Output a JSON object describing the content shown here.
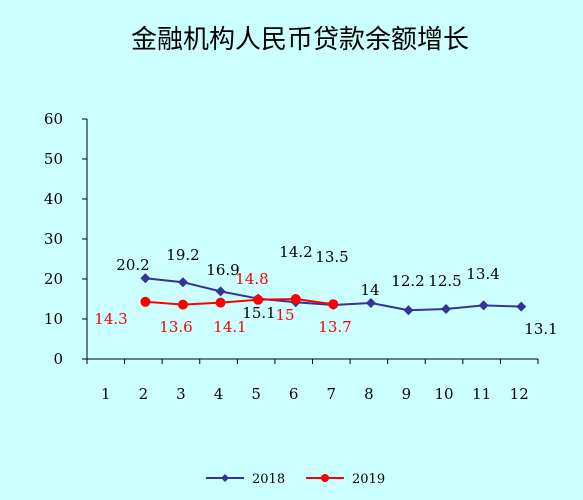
{
  "chart_data": {
    "type": "line",
    "title": "金融机构人民币贷款余额增长",
    "xlabel": "",
    "ylabel": "",
    "categories": [
      "1",
      "2",
      "3",
      "4",
      "5",
      "6",
      "7",
      "8",
      "9",
      "10",
      "11",
      "12"
    ],
    "ylim": [
      0,
      60
    ],
    "yticks": [
      "0",
      "10",
      "20",
      "30",
      "40",
      "50",
      "60"
    ],
    "grid": false,
    "legend": "bottom-center",
    "series": [
      {
        "name": "2018",
        "color": "#333399",
        "marker": "diamond",
        "values": [
          null,
          20.2,
          19.2,
          16.9,
          15.1,
          14.2,
          13.5,
          14,
          12.2,
          12.5,
          13.4,
          13.1
        ],
        "labels": [
          "",
          "20.2",
          "19.2",
          "16.9",
          "15.1",
          "14.2",
          "13.5",
          "14",
          "12.2",
          "12.5",
          "13.4",
          "13.1"
        ],
        "label_color": "#000000"
      },
      {
        "name": "2019",
        "color": "#ff0000",
        "marker": "circle",
        "values": [
          null,
          14.3,
          13.6,
          14.1,
          14.8,
          15,
          13.7,
          null,
          null,
          null,
          null,
          null
        ],
        "labels": [
          "14.3",
          "13.6",
          "14.1",
          "14.8",
          "15",
          "13.7"
        ],
        "label_color": "#ff0000"
      }
    ]
  }
}
